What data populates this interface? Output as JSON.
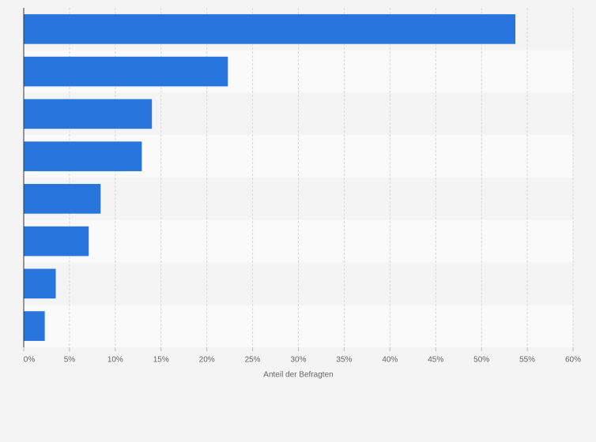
{
  "chart_data": {
    "type": "bar",
    "orientation": "horizontal",
    "x_label": "Anteil der Befragten",
    "categories": [
      null,
      null,
      null,
      null,
      null,
      null,
      null,
      null
    ],
    "values": [
      53.7,
      22.3,
      14.0,
      12.9,
      8.4,
      7.1,
      3.5,
      2.3
    ],
    "color": "#2876dd",
    "xlim": [
      0,
      60
    ],
    "xticks": [
      {
        "value": 0,
        "label": "0%"
      },
      {
        "value": 5,
        "label": "5%"
      },
      {
        "value": 10,
        "label": "10%"
      },
      {
        "value": 15,
        "label": "15%"
      },
      {
        "value": 20,
        "label": "20%"
      },
      {
        "value": 25,
        "label": "25%"
      },
      {
        "value": 30,
        "label": "30%"
      },
      {
        "value": 35,
        "label": "35%"
      },
      {
        "value": 40,
        "label": "40%"
      },
      {
        "value": 45,
        "label": "45%"
      },
      {
        "value": 50,
        "label": "50%"
      },
      {
        "value": 55,
        "label": "55%"
      },
      {
        "value": 60,
        "label": "60%"
      }
    ],
    "grid": true
  }
}
